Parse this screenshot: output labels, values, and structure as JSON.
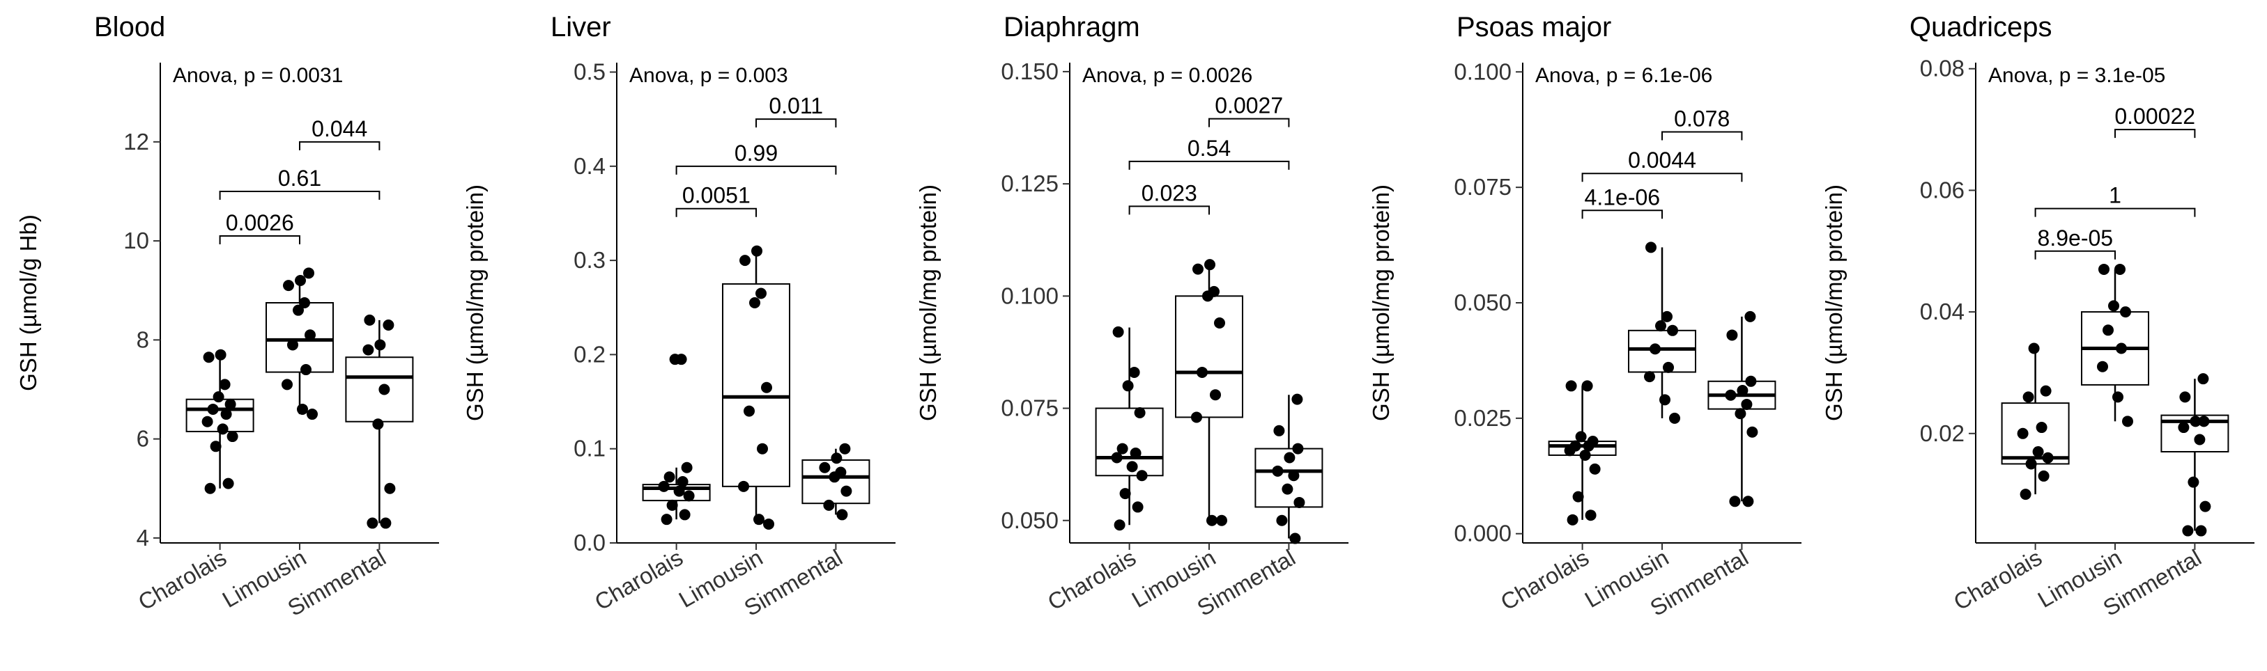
{
  "figure": {
    "categories": [
      "Charolais",
      "Limousin",
      "Simmental"
    ]
  },
  "chart_data": [
    {
      "type": "box",
      "title": "Blood",
      "ylabel": "GSH (µmol/g Hb)",
      "ylim": [
        3.9,
        13.6
      ],
      "yticks": [
        4,
        6,
        8,
        10,
        12
      ],
      "yticklabels": [
        "4",
        "6",
        "8",
        "10",
        "12"
      ],
      "anova_label": "Anova, p = 0.0031",
      "categories": [
        "Charolais",
        "Limousin",
        "Simmental"
      ],
      "boxes": [
        {
          "min": 5.0,
          "q1": 6.15,
          "median": 6.6,
          "q3": 6.8,
          "max": 7.7
        },
        {
          "min": 6.5,
          "q1": 7.35,
          "median": 8.0,
          "q3": 8.75,
          "max": 9.3
        },
        {
          "min": 4.3,
          "q1": 6.35,
          "median": 7.25,
          "q3": 7.65,
          "max": 8.4
        }
      ],
      "points": [
        [
          5.0,
          5.1,
          5.85,
          6.05,
          6.2,
          6.35,
          6.5,
          6.6,
          6.7,
          6.85,
          7.1,
          7.65,
          7.7
        ],
        [
          6.5,
          6.6,
          7.1,
          7.4,
          7.9,
          8.1,
          8.6,
          8.75,
          9.1,
          9.2,
          9.35
        ],
        [
          4.3,
          4.3,
          5.0,
          6.3,
          7.0,
          7.8,
          7.9,
          8.3,
          8.4
        ]
      ],
      "comparisons": [
        {
          "pair": [
            0,
            1
          ],
          "label": "0.0026",
          "y": 10.1
        },
        {
          "pair": [
            0,
            2
          ],
          "label": "0.61",
          "y": 11.0
        },
        {
          "pair": [
            1,
            2
          ],
          "label": "0.044",
          "y": 12.0
        }
      ]
    },
    {
      "type": "box",
      "title": "Liver",
      "ylabel": "GSH (µmol/mg protein)",
      "ylim": [
        0,
        0.51
      ],
      "yticks": [
        0,
        0.1,
        0.2,
        0.3,
        0.4,
        0.5
      ],
      "yticklabels": [
        "0.0",
        "0.1",
        "0.2",
        "0.3",
        "0.4",
        "0.5"
      ],
      "anova_label": "Anova, p = 0.003",
      "categories": [
        "Charolais",
        "Limousin",
        "Simmental"
      ],
      "boxes": [
        {
          "min": 0.025,
          "q1": 0.045,
          "median": 0.058,
          "q3": 0.062,
          "max": 0.08
        },
        {
          "min": 0.02,
          "q1": 0.06,
          "median": 0.155,
          "q3": 0.275,
          "max": 0.31
        },
        {
          "min": 0.03,
          "q1": 0.042,
          "median": 0.07,
          "q3": 0.088,
          "max": 0.1
        }
      ],
      "points": [
        [
          0.025,
          0.03,
          0.04,
          0.05,
          0.055,
          0.06,
          0.065,
          0.07,
          0.08,
          0.195,
          0.195
        ],
        [
          0.02,
          0.025,
          0.06,
          0.1,
          0.14,
          0.165,
          0.255,
          0.265,
          0.3,
          0.31
        ],
        [
          0.03,
          0.04,
          0.055,
          0.07,
          0.075,
          0.08,
          0.09,
          0.1
        ]
      ],
      "comparisons": [
        {
          "pair": [
            0,
            1
          ],
          "label": "0.0051",
          "y": 0.355
        },
        {
          "pair": [
            0,
            2
          ],
          "label": "0.99",
          "y": 0.4
        },
        {
          "pair": [
            1,
            2
          ],
          "label": "0.011",
          "y": 0.45
        }
      ]
    },
    {
      "type": "box",
      "title": "Diaphragm",
      "ylabel": "GSH (µmol/mg protein)",
      "ylim": [
        0.045,
        0.152
      ],
      "yticks": [
        0.05,
        0.075,
        0.1,
        0.125,
        0.15
      ],
      "yticklabels": [
        "0.050",
        "0.075",
        "0.100",
        "0.125",
        "0.150"
      ],
      "anova_label": "Anova, p = 0.0026",
      "categories": [
        "Charolais",
        "Limousin",
        "Simmental"
      ],
      "boxes": [
        {
          "min": 0.049,
          "q1": 0.06,
          "median": 0.064,
          "q3": 0.075,
          "max": 0.093
        },
        {
          "min": 0.05,
          "q1": 0.073,
          "median": 0.083,
          "q3": 0.1,
          "max": 0.107
        },
        {
          "min": 0.046,
          "q1": 0.053,
          "median": 0.061,
          "q3": 0.066,
          "max": 0.078
        }
      ],
      "points": [
        [
          0.049,
          0.053,
          0.056,
          0.06,
          0.062,
          0.064,
          0.065,
          0.066,
          0.074,
          0.08,
          0.083,
          0.092
        ],
        [
          0.05,
          0.05,
          0.073,
          0.078,
          0.083,
          0.094,
          0.1,
          0.101,
          0.106,
          0.107
        ],
        [
          0.046,
          0.05,
          0.054,
          0.057,
          0.06,
          0.061,
          0.064,
          0.066,
          0.07,
          0.077
        ]
      ],
      "comparisons": [
        {
          "pair": [
            0,
            1
          ],
          "label": "0.023",
          "y": 0.12
        },
        {
          "pair": [
            0,
            2
          ],
          "label": "0.54",
          "y": 0.13
        },
        {
          "pair": [
            1,
            2
          ],
          "label": "0.0027",
          "y": 0.1395
        }
      ]
    },
    {
      "type": "box",
      "title": "Psoas major",
      "ylabel": "GSH (µmol/mg protein)",
      "ylim": [
        -0.002,
        0.102
      ],
      "yticks": [
        0,
        0.025,
        0.05,
        0.075,
        0.1
      ],
      "yticklabels": [
        "0.000",
        "0.025",
        "0.050",
        "0.075",
        "0.100"
      ],
      "anova_label": "Anova, p = 6.1e-06",
      "categories": [
        "Charolais",
        "Limousin",
        "Simmental"
      ],
      "boxes": [
        {
          "min": 0.003,
          "q1": 0.017,
          "median": 0.019,
          "q3": 0.02,
          "max": 0.032
        },
        {
          "min": 0.025,
          "q1": 0.035,
          "median": 0.04,
          "q3": 0.044,
          "max": 0.062
        },
        {
          "min": 0.007,
          "q1": 0.027,
          "median": 0.03,
          "q3": 0.033,
          "max": 0.047
        }
      ],
      "points": [
        [
          0.003,
          0.004,
          0.008,
          0.014,
          0.017,
          0.018,
          0.019,
          0.019,
          0.02,
          0.021,
          0.032,
          0.032
        ],
        [
          0.025,
          0.029,
          0.034,
          0.036,
          0.04,
          0.044,
          0.045,
          0.047,
          0.062
        ],
        [
          0.007,
          0.007,
          0.022,
          0.026,
          0.028,
          0.03,
          0.031,
          0.033,
          0.043,
          0.047
        ]
      ],
      "comparisons": [
        {
          "pair": [
            0,
            1
          ],
          "label": "4.1e-06",
          "y": 0.07
        },
        {
          "pair": [
            0,
            2
          ],
          "label": "0.0044",
          "y": 0.078
        },
        {
          "pair": [
            1,
            2
          ],
          "label": "0.078",
          "y": 0.087
        }
      ]
    },
    {
      "type": "box",
      "title": "Quadriceps",
      "ylabel": "GSH (µmol/mg protein)",
      "ylim": [
        0.002,
        0.081
      ],
      "yticks": [
        0.02,
        0.04,
        0.06,
        0.08
      ],
      "yticklabels": [
        "0.02",
        "0.04",
        "0.06",
        "0.08"
      ],
      "anova_label": "Anova, p = 3.1e-05",
      "categories": [
        "Charolais",
        "Limousin",
        "Simmental"
      ],
      "boxes": [
        {
          "min": 0.01,
          "q1": 0.015,
          "median": 0.016,
          "q3": 0.025,
          "max": 0.034
        },
        {
          "min": 0.022,
          "q1": 0.028,
          "median": 0.034,
          "q3": 0.04,
          "max": 0.047
        },
        {
          "min": 0.004,
          "q1": 0.017,
          "median": 0.022,
          "q3": 0.023,
          "max": 0.029
        }
      ],
      "points": [
        [
          0.01,
          0.013,
          0.015,
          0.016,
          0.017,
          0.02,
          0.021,
          0.026,
          0.027,
          0.034
        ],
        [
          0.022,
          0.026,
          0.031,
          0.034,
          0.037,
          0.04,
          0.041,
          0.047,
          0.047
        ],
        [
          0.004,
          0.004,
          0.008,
          0.012,
          0.019,
          0.021,
          0.022,
          0.022,
          0.026,
          0.029
        ]
      ],
      "comparisons": [
        {
          "pair": [
            0,
            1
          ],
          "label": "8.9e-05",
          "y": 0.05
        },
        {
          "pair": [
            0,
            2
          ],
          "label": "1",
          "y": 0.057
        },
        {
          "pair": [
            1,
            2
          ],
          "label": "0.00022",
          "y": 0.07
        }
      ]
    }
  ]
}
